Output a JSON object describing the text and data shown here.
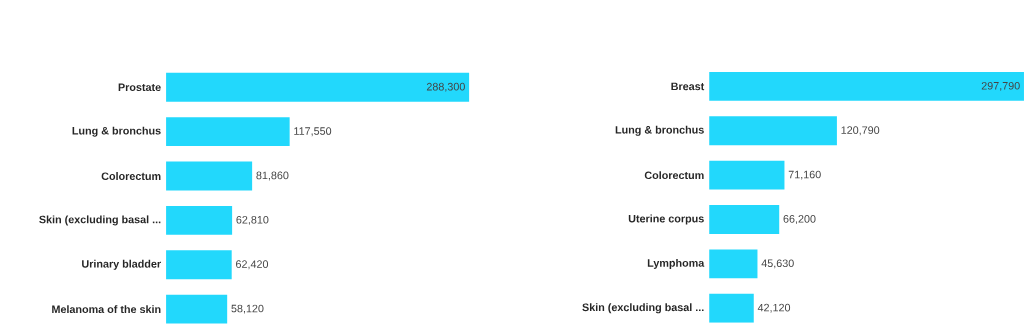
{
  "chart_data": [
    {
      "type": "bar",
      "orientation": "horizontal",
      "color": "#22d8fc",
      "categories": [
        "Prostate",
        "Lung & bronchus",
        "Colorectum",
        "Skin (excluding basal ...",
        "Urinary bladder",
        "Melanoma of the skin"
      ],
      "values": [
        288300,
        117550,
        81860,
        62810,
        62420,
        58120
      ],
      "value_labels": [
        "288,300",
        "117,550",
        "81,860",
        "62,810",
        "62,420",
        "58,120"
      ]
    },
    {
      "type": "bar",
      "orientation": "horizontal",
      "color": "#22d8fc",
      "categories": [
        "Breast",
        "Lung & bronchus",
        "Colorectum",
        "Uterine corpus",
        "Lymphoma",
        "Skin (excluding basal ..."
      ],
      "values": [
        297790,
        120790,
        71160,
        66200,
        45630,
        42120
      ],
      "value_labels": [
        "297,790",
        "120,790",
        "71,160",
        "66,200",
        "45,630",
        "42,120"
      ]
    }
  ]
}
